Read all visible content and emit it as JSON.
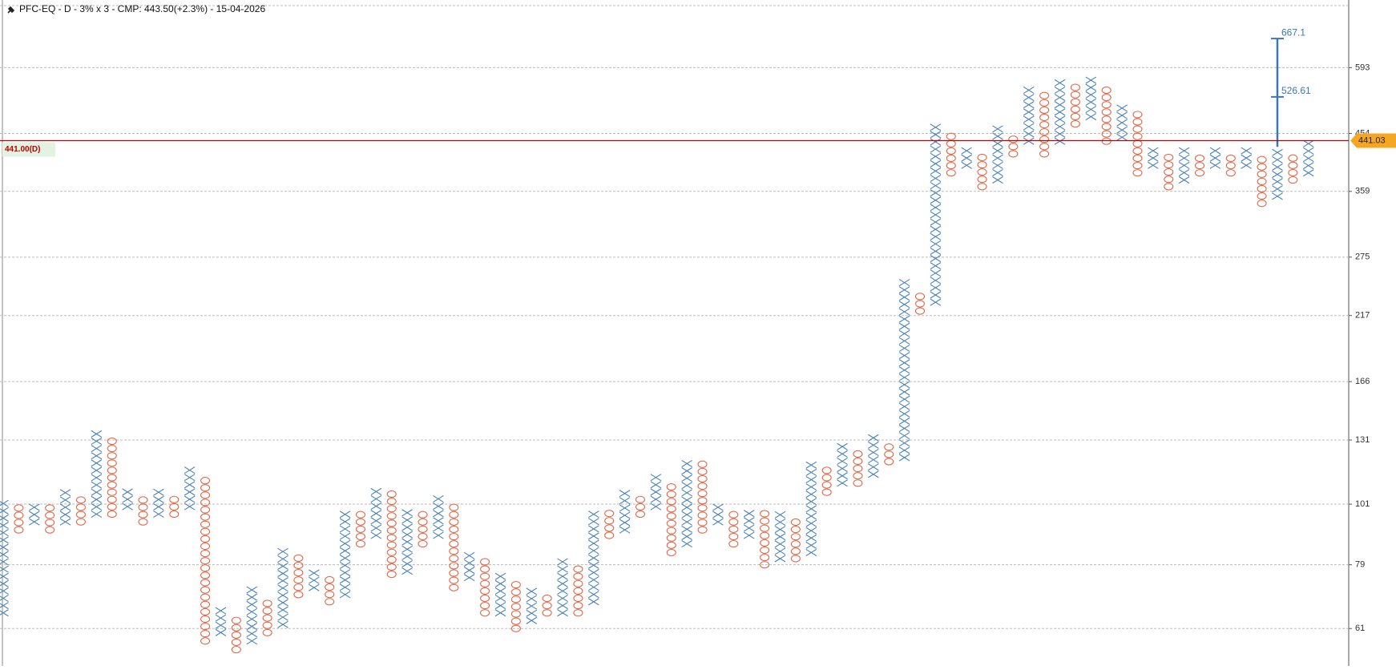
{
  "chart_data": {
    "type": "pnf",
    "title": "PFC-EQ - D - 3% x 3 - CMP: 443.50(+2.3%) - 15-04-2026",
    "box_pct": 3,
    "log_scale": true,
    "grid": true,
    "ylim": [
      52.4,
      780
    ],
    "yticks": [
      61,
      79,
      101,
      131,
      166,
      217,
      275,
      359,
      454,
      593
    ],
    "x_color": "#4a82b8",
    "o_color": "#e0694a",
    "columns": [
      {
        "type": "X",
        "low": 65,
        "high": 101
      },
      {
        "type": "O",
        "low": 91,
        "high": 99
      },
      {
        "type": "X",
        "low": 94,
        "high": 101
      },
      {
        "type": "O",
        "low": 91,
        "high": 99
      },
      {
        "type": "X",
        "low": 94,
        "high": 108
      },
      {
        "type": "O",
        "low": 94,
        "high": 105
      },
      {
        "type": "X",
        "low": 97,
        "high": 134
      },
      {
        "type": "O",
        "low": 97,
        "high": 130
      },
      {
        "type": "X",
        "low": 100,
        "high": 108
      },
      {
        "type": "O",
        "low": 94,
        "high": 105
      },
      {
        "type": "X",
        "low": 97,
        "high": 108
      },
      {
        "type": "O",
        "low": 97,
        "high": 105
      },
      {
        "type": "X",
        "low": 100,
        "high": 116
      },
      {
        "type": "O",
        "low": 58,
        "high": 112
      },
      {
        "type": "X",
        "low": 60,
        "high": 67
      },
      {
        "type": "O",
        "low": 56,
        "high": 64
      },
      {
        "type": "X",
        "low": 58,
        "high": 71
      },
      {
        "type": "O",
        "low": 60,
        "high": 69
      },
      {
        "type": "X",
        "low": 62,
        "high": 85
      },
      {
        "type": "O",
        "low": 70,
        "high": 83
      },
      {
        "type": "X",
        "low": 72,
        "high": 78
      },
      {
        "type": "O",
        "low": 68,
        "high": 75
      },
      {
        "type": "X",
        "low": 70,
        "high": 99
      },
      {
        "type": "O",
        "low": 86,
        "high": 97
      },
      {
        "type": "X",
        "low": 89,
        "high": 108
      },
      {
        "type": "O",
        "low": 76,
        "high": 105
      },
      {
        "type": "X",
        "low": 77,
        "high": 99
      },
      {
        "type": "O",
        "low": 86,
        "high": 97
      },
      {
        "type": "X",
        "low": 89,
        "high": 105
      },
      {
        "type": "O",
        "low": 72,
        "high": 101
      },
      {
        "type": "X",
        "low": 75,
        "high": 83
      },
      {
        "type": "O",
        "low": 65,
        "high": 80
      },
      {
        "type": "X",
        "low": 65,
        "high": 76
      },
      {
        "type": "O",
        "low": 61,
        "high": 73
      },
      {
        "type": "X",
        "low": 63,
        "high": 71
      },
      {
        "type": "O",
        "low": 65,
        "high": 69
      },
      {
        "type": "X",
        "low": 65,
        "high": 80
      },
      {
        "type": "O",
        "low": 65,
        "high": 78
      },
      {
        "type": "X",
        "low": 68,
        "high": 99
      },
      {
        "type": "O",
        "low": 89,
        "high": 97
      },
      {
        "type": "X",
        "low": 91,
        "high": 108
      },
      {
        "type": "O",
        "low": 97,
        "high": 105
      },
      {
        "type": "X",
        "low": 100,
        "high": 112
      },
      {
        "type": "O",
        "low": 83,
        "high": 108
      },
      {
        "type": "X",
        "low": 86,
        "high": 122
      },
      {
        "type": "O",
        "low": 91,
        "high": 119
      },
      {
        "type": "X",
        "low": 94,
        "high": 101
      },
      {
        "type": "O",
        "low": 86,
        "high": 99
      },
      {
        "type": "X",
        "low": 89,
        "high": 99
      },
      {
        "type": "O",
        "low": 79,
        "high": 97
      },
      {
        "type": "X",
        "low": 81,
        "high": 97
      },
      {
        "type": "O",
        "low": 81,
        "high": 94
      },
      {
        "type": "X",
        "low": 83,
        "high": 119
      },
      {
        "type": "O",
        "low": 106,
        "high": 116
      },
      {
        "type": "X",
        "low": 110,
        "high": 130
      },
      {
        "type": "O",
        "low": 110,
        "high": 126
      },
      {
        "type": "X",
        "low": 114,
        "high": 134
      },
      {
        "type": "O",
        "low": 120,
        "high": 130
      },
      {
        "type": "X",
        "low": 122,
        "high": 248
      },
      {
        "type": "O",
        "low": 221,
        "high": 240
      },
      {
        "type": "X",
        "low": 229,
        "high": 470
      },
      {
        "type": "O",
        "low": 387,
        "high": 454
      },
      {
        "type": "X",
        "low": 399,
        "high": 430
      },
      {
        "type": "O",
        "low": 366,
        "high": 418
      },
      {
        "type": "X",
        "low": 376,
        "high": 470
      },
      {
        "type": "O",
        "low": 418,
        "high": 454
      },
      {
        "type": "X",
        "low": 440,
        "high": 545
      },
      {
        "type": "O",
        "low": 418,
        "high": 528
      },
      {
        "type": "X",
        "low": 440,
        "high": 565
      },
      {
        "type": "O",
        "low": 472,
        "high": 545
      },
      {
        "type": "X",
        "low": 486,
        "high": 565
      },
      {
        "type": "O",
        "low": 440,
        "high": 545
      },
      {
        "type": "X",
        "low": 447,
        "high": 510
      },
      {
        "type": "O",
        "low": 387,
        "high": 500
      },
      {
        "type": "X",
        "low": 399,
        "high": 430
      },
      {
        "type": "O",
        "low": 366,
        "high": 418
      },
      {
        "type": "X",
        "low": 376,
        "high": 430
      },
      {
        "type": "O",
        "low": 387,
        "high": 418
      },
      {
        "type": "X",
        "low": 399,
        "high": 430
      },
      {
        "type": "O",
        "low": 387,
        "high": 418
      },
      {
        "type": "X",
        "low": 399,
        "high": 430
      },
      {
        "type": "O",
        "low": 342,
        "high": 418
      },
      {
        "type": "X",
        "low": 352,
        "high": 430,
        "target": [
          526.61,
          667.1
        ]
      },
      {
        "type": "O",
        "low": 376,
        "high": 418
      },
      {
        "type": "X",
        "low": 387,
        "high": 441
      }
    ],
    "reference_line": {
      "value": 441,
      "label": "441.00(D)",
      "color": "#c00000"
    },
    "price_tag": {
      "value": 441.03,
      "color": "#f5a623"
    },
    "target_color": "#3a78b5"
  }
}
